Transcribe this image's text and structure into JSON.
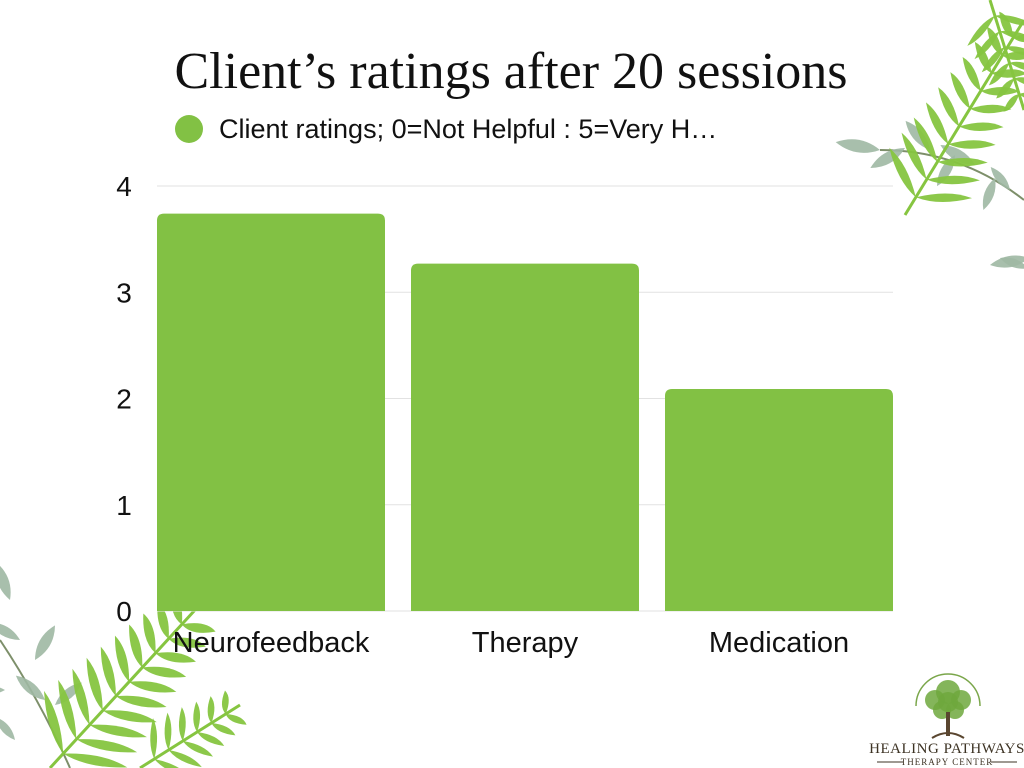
{
  "chart_data": {
    "type": "bar",
    "title": "Client’s ratings after 20 sessions",
    "categories": [
      "Neurofeedback",
      "Therapy",
      "Medication"
    ],
    "series": [
      {
        "name": "Client ratings; 0=Not Helpful : 5=Very H…",
        "values": [
          3.74,
          3.27,
          2.09
        ],
        "color": "#82c144"
      }
    ],
    "ylim": [
      0,
      4
    ],
    "yticks": [
      0,
      1,
      2,
      3,
      4
    ],
    "grid": true,
    "legend_position": "top"
  },
  "logo": {
    "name": "HEALING PATHWAYS",
    "subtitle": "THERAPY CENTER"
  },
  "decor": {
    "fern_color": "#86c540",
    "leaf_color": "#9fb8a3",
    "stem_color": "#7d8f6a"
  }
}
